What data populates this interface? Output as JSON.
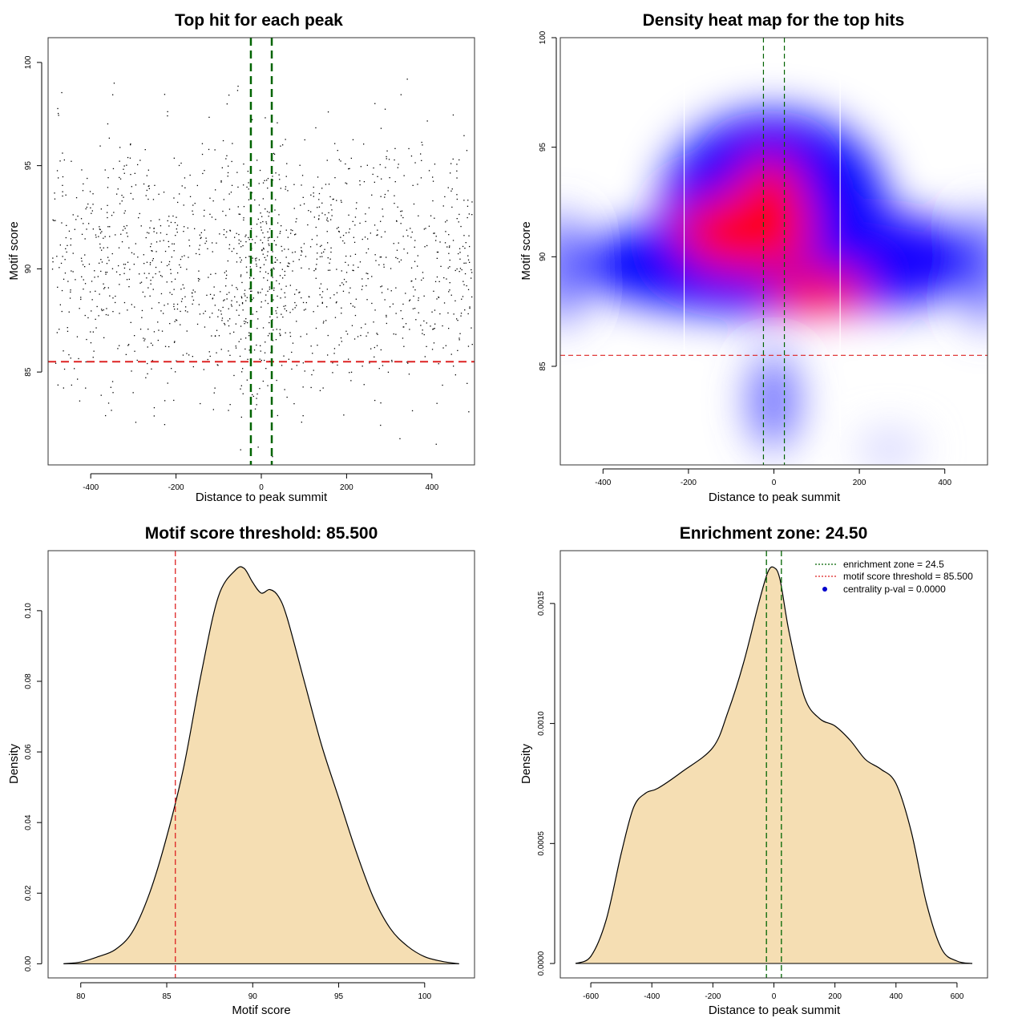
{
  "chart_data": [
    {
      "type": "scatter",
      "title": "Top hit for each peak",
      "xlabel": "Distance to peak summit",
      "ylabel": "Motif score",
      "xlim": [
        -500,
        500
      ],
      "ylim": [
        80.5,
        101.2
      ],
      "x_ticks": [
        -400,
        -200,
        0,
        200,
        400
      ],
      "y_ticks": [
        85,
        90,
        95,
        100
      ],
      "threshold": 85.5,
      "enrichment_zone": 24.5,
      "points_note": "about 1500 points: score roughly normal (mean about 90.2, sd 3.2), distance roughly uniform with a peak around 0",
      "colors": {
        "points": "#000000",
        "threshold": "#dd2222",
        "zone": "#006400"
      }
    },
    {
      "type": "heatmap",
      "title": "Density heat map for the top hits",
      "xlabel": "Distance to peak summit",
      "ylabel": "Motif score",
      "xlim": [
        -500,
        500
      ],
      "ylim": [
        80.5,
        100
      ],
      "x_ticks": [
        -400,
        -200,
        0,
        200,
        400
      ],
      "y_ticks": [
        85,
        90,
        95,
        100
      ],
      "threshold": 85.5,
      "enrichment_zone": 24.5,
      "white_lines_x": [
        -210,
        155
      ],
      "colors": {
        "low": "#ffffff",
        "mid": "#0000ff",
        "high": "#ff0000",
        "threshold": "#dd2222",
        "zone": "#006400"
      }
    },
    {
      "type": "area",
      "title": "Motif score threshold: 85.500",
      "xlabel": "Motif score",
      "ylabel": "Density",
      "xlim": [
        78.1,
        102.9
      ],
      "ylim": [
        -0.004,
        0.117
      ],
      "x_ticks": [
        80,
        85,
        90,
        95,
        100
      ],
      "y_ticks": [
        0.0,
        0.02,
        0.04,
        0.06,
        0.08,
        0.1
      ],
      "y_tick_labels": [
        "0.00",
        "0.02",
        "0.04",
        "0.06",
        "0.08",
        "0.10"
      ],
      "threshold": 85.5,
      "x": [
        79,
        80,
        81,
        82,
        83,
        84,
        85,
        86,
        87,
        88,
        89,
        89.5,
        90,
        90.5,
        91,
        91.5,
        92,
        93,
        94,
        95,
        96,
        97,
        98,
        99,
        100,
        101,
        102
      ],
      "y": [
        0.0,
        0.0005,
        0.002,
        0.004,
        0.009,
        0.02,
        0.036,
        0.056,
        0.082,
        0.104,
        0.1115,
        0.112,
        0.108,
        0.105,
        0.106,
        0.104,
        0.098,
        0.08,
        0.062,
        0.047,
        0.032,
        0.019,
        0.01,
        0.005,
        0.002,
        0.0007,
        0.0
      ],
      "colors": {
        "fill": "#f5deb3",
        "line": "#000000",
        "threshold": "#dd2222"
      }
    },
    {
      "type": "area",
      "title": "Enrichment zone: 24.50",
      "xlabel": "Distance to peak summit",
      "ylabel": "Density",
      "xlim": [
        -700,
        700
      ],
      "ylim": [
        -6e-05,
        0.00172
      ],
      "x_ticks": [
        -600,
        -400,
        -200,
        0,
        200,
        400,
        600
      ],
      "y_ticks": [
        0.0,
        0.0005,
        0.001,
        0.0015
      ],
      "y_tick_labels": [
        "0.0000",
        "0.0005",
        "0.0010",
        "0.0015"
      ],
      "enrichment_zone": 24.5,
      "x": [
        -650,
        -600,
        -550,
        -500,
        -460,
        -420,
        -380,
        -300,
        -200,
        -150,
        -100,
        -50,
        -20,
        0,
        20,
        50,
        100,
        150,
        200,
        250,
        300,
        350,
        400,
        450,
        500,
        550,
        600,
        650
      ],
      "y": [
        0.0,
        3e-05,
        0.00018,
        0.00046,
        0.00065,
        0.00071,
        0.00073,
        0.0008,
        0.0009,
        0.00105,
        0.00125,
        0.0015,
        0.00163,
        0.00165,
        0.0016,
        0.00138,
        0.00111,
        0.00102,
        0.00099,
        0.00093,
        0.00085,
        0.00081,
        0.00075,
        0.00055,
        0.00025,
        6e-05,
        1e-05,
        0.0
      ],
      "legend": {
        "position": "top-right",
        "entries": [
          "enrichment zone = 24.5",
          "motif score threshold = 85.500",
          "centrality p-val = 0.0000"
        ]
      },
      "colors": {
        "fill": "#f5deb3",
        "line": "#000000",
        "zone": "#006400",
        "threshold": "#dd2222",
        "pval": "#0000cc"
      }
    }
  ]
}
